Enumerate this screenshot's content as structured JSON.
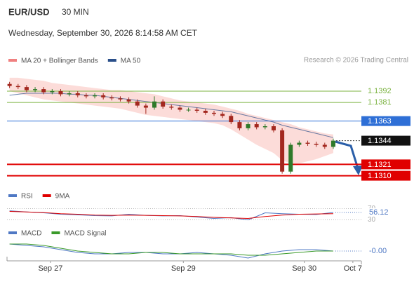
{
  "chart_data": {
    "type": "candlestick",
    "title": "EUR/USD",
    "timeframe": "30 MIN",
    "subtitle": "Wednesday, September 30, 2026 8:14:58 AM CET",
    "credit": "Research © 2026 Trading Central",
    "legend": [
      {
        "name": "MA 20 + Bollinger Bands",
        "color": "#f08080"
      },
      {
        "name": "MA 50",
        "color": "#2a4f8a"
      }
    ],
    "open": [
      1.1399,
      1.1397,
      1.1396,
      1.1393,
      1.1394,
      1.1391,
      1.1392,
      1.1389,
      1.139,
      1.1388,
      1.1387,
      1.1388,
      1.1386,
      1.1385,
      1.1384,
      1.1382,
      1.1378,
      1.1376,
      1.1382,
      1.1377,
      1.1376,
      1.1374,
      1.1374,
      1.1373,
      1.1371,
      1.137,
      1.1368,
      1.1362,
      1.1356,
      1.136,
      1.1357,
      1.1358,
      1.1354,
      1.1314,
      1.134,
      1.1342,
      1.1341,
      1.134,
      1.1338
    ],
    "high": [
      1.1401,
      1.1399,
      1.1398,
      1.1396,
      1.1396,
      1.1394,
      1.1394,
      1.1392,
      1.1392,
      1.139,
      1.139,
      1.139,
      1.1388,
      1.1387,
      1.1386,
      1.1384,
      1.138,
      1.1387,
      1.1384,
      1.1379,
      1.1378,
      1.1376,
      1.1376,
      1.1375,
      1.1373,
      1.1372,
      1.137,
      1.1364,
      1.1362,
      1.1362,
      1.136,
      1.136,
      1.1356,
      1.1342,
      1.1344,
      1.1344,
      1.1343,
      1.1342,
      1.1346
    ],
    "low": [
      1.1395,
      1.1394,
      1.1391,
      1.1391,
      1.1389,
      1.1389,
      1.1387,
      1.1387,
      1.1386,
      1.1385,
      1.1385,
      1.1384,
      1.1383,
      1.1382,
      1.138,
      1.1376,
      1.137,
      1.1374,
      1.1375,
      1.1374,
      1.1372,
      1.1372,
      1.1371,
      1.1369,
      1.1368,
      1.1366,
      1.136,
      1.1354,
      1.1354,
      1.1355,
      1.1355,
      1.1352,
      1.1312,
      1.1312,
      1.1338,
      1.1339,
      1.1338,
      1.1336,
      1.1336
    ],
    "close": [
      1.1397,
      1.1396,
      1.1393,
      1.1394,
      1.1391,
      1.1392,
      1.1389,
      1.139,
      1.1388,
      1.1387,
      1.1388,
      1.1386,
      1.1385,
      1.1384,
      1.1382,
      1.1378,
      1.1376,
      1.1382,
      1.1377,
      1.1376,
      1.1374,
      1.1374,
      1.1373,
      1.1371,
      1.137,
      1.1368,
      1.1362,
      1.1356,
      1.136,
      1.1357,
      1.1358,
      1.1354,
      1.1314,
      1.134,
      1.1342,
      1.1341,
      1.134,
      1.1338,
      1.1344
    ],
    "bb_upper": [
      1.1405,
      1.1405,
      1.1404,
      1.1403,
      1.1402,
      1.14,
      1.1399,
      1.1398,
      1.1397,
      1.1396,
      1.1395,
      1.1394,
      1.1393,
      1.1393,
      1.1392,
      1.1391,
      1.139,
      1.1389,
      1.1387,
      1.1385,
      1.1383,
      1.1382,
      1.1381,
      1.138,
      1.1379,
      1.1377,
      1.1375,
      1.1373,
      1.137,
      1.1368,
      1.1366,
      1.1364,
      1.1362,
      1.136,
      1.1357,
      1.1355,
      1.1353,
      1.1351,
      1.135
    ],
    "bb_lower": [
      1.1392,
      1.139,
      1.1388,
      1.1386,
      1.1384,
      1.1383,
      1.1382,
      1.1381,
      1.138,
      1.1379,
      1.1378,
      1.1377,
      1.1376,
      1.1375,
      1.1373,
      1.1371,
      1.1369,
      1.1368,
      1.1367,
      1.1366,
      1.1365,
      1.1364,
      1.1363,
      1.1362,
      1.1361,
      1.1359,
      1.1355,
      1.135,
      1.1345,
      1.134,
      1.1336,
      1.1332,
      1.1325,
      1.1322,
      1.1322,
      1.1324,
      1.1326,
      1.1329,
      1.1332
    ],
    "ma50": [
      1.1388,
      1.1389,
      1.139,
      1.139,
      1.139,
      1.139,
      1.139,
      1.1389,
      1.1389,
      1.1388,
      1.1388,
      1.1387,
      1.1386,
      1.1385,
      1.1384,
      1.1383,
      1.1382,
      1.1381,
      1.138,
      1.1379,
      1.1378,
      1.1377,
      1.1376,
      1.1375,
      1.1374,
      1.1373,
      1.1372,
      1.137,
      1.1368,
      1.1366,
      1.1364,
      1.1362,
      1.1359,
      1.1357,
      1.1355,
      1.1353,
      1.1351,
      1.1349,
      1.1347
    ],
    "ylim": [
      1.1307,
      1.1409
    ],
    "xlim": [
      -0.3,
      41.3
    ],
    "xticks": [
      {
        "value": 4.8,
        "label": "Sep 27"
      },
      {
        "value": 20.4,
        "label": "Sep 29"
      },
      {
        "value": 34.6,
        "label": "Sep 30"
      },
      {
        "value": 40.3,
        "label": "Oct 7"
      }
    ],
    "levels": [
      {
        "value": 1.1392,
        "label": "1.1392",
        "color": "#7cb342",
        "style": "text"
      },
      {
        "value": 1.1381,
        "label": "1.1381",
        "color": "#7cb342",
        "style": "text"
      },
      {
        "value": 1.1363,
        "label": "1.1363",
        "color": "#2e6fd6",
        "style": "box"
      },
      {
        "value": 1.1344,
        "label": "1.1344",
        "color": "#111111",
        "style": "last"
      },
      {
        "value": 1.1321,
        "label": "1.1321",
        "color": "#e00000",
        "style": "box"
      },
      {
        "value": 1.131,
        "label": "1.1310",
        "color": "#e00000",
        "style": "box"
      }
    ],
    "rsi": {
      "legend": [
        {
          "name": "RSI",
          "color": "#4f78c4"
        },
        {
          "name": "9MA",
          "color": "#e00000"
        }
      ],
      "rsi": [
        62,
        58,
        55,
        50,
        48,
        45,
        44,
        50,
        46,
        44,
        45,
        40,
        35,
        38,
        30,
        55,
        52,
        50,
        49,
        56.12
      ],
      "ma9": [
        60,
        58,
        56,
        52,
        50,
        47,
        46,
        47,
        46,
        45,
        44,
        42,
        39,
        37,
        35,
        42,
        47,
        50,
        51,
        52
      ],
      "ylim": [
        14,
        96
      ],
      "yticks": [
        70,
        30
      ]
    },
    "macd": {
      "legend": [
        {
          "name": "MACD",
          "color": "#4f78c4"
        },
        {
          "name": "MACD Signal",
          "color": "#3a9a2a"
        }
      ],
      "macd": [
        0.0004,
        0.0003,
        0.0002,
        0.0,
        -0.0002,
        -0.0003,
        -0.0003,
        -0.0002,
        -0.0002,
        -0.0003,
        -0.0003,
        -0.0002,
        -0.0003,
        -0.0004,
        -0.0006,
        -0.0003,
        -0.0001,
        0.0,
        0.0,
        -0.0001
      ],
      "signal": [
        0.0004,
        0.0004,
        0.0003,
        0.0001,
        -0.0001,
        -0.0002,
        -0.0003,
        -0.0003,
        -0.0002,
        -0.0002,
        -0.0003,
        -0.0003,
        -0.0003,
        -0.0003,
        -0.0004,
        -0.0004,
        -0.0003,
        -0.0002,
        -0.0001,
        -0.0001
      ],
      "value_labels": {
        "last": "-0.00"
      },
      "ylim": [
        -0.0008,
        0.0008
      ]
    }
  }
}
